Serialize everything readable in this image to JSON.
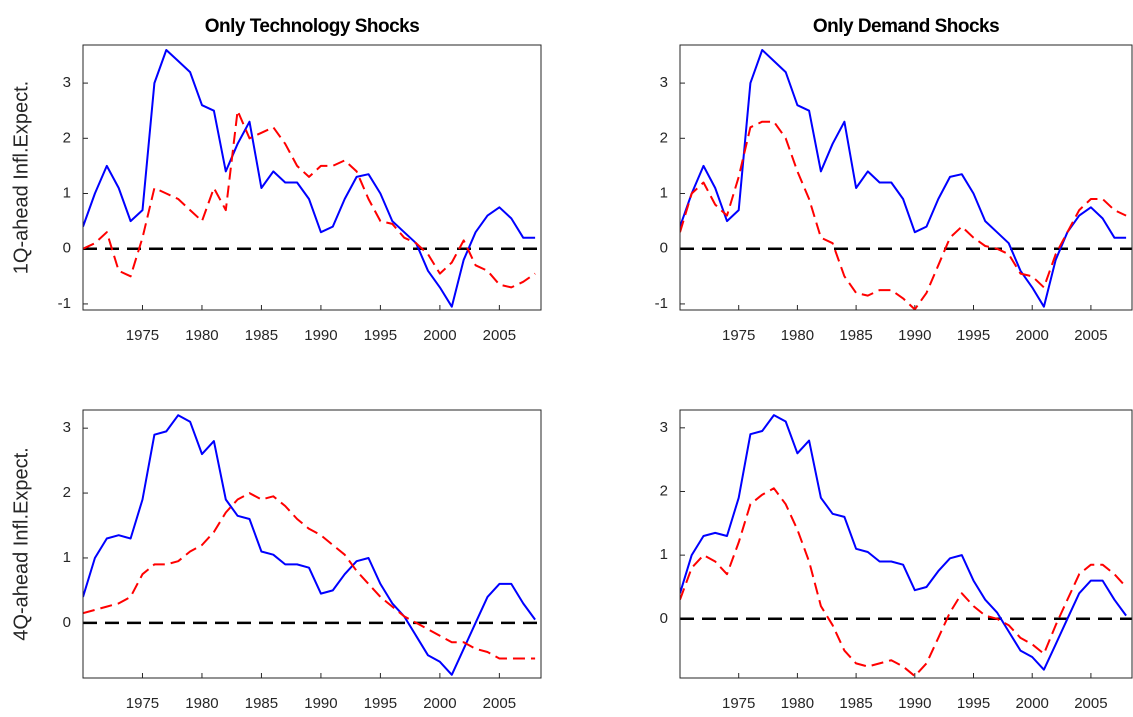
{
  "chart_data": [
    {
      "type": "line",
      "title": "Only Technology Shocks",
      "ylabel": "1Q-ahead Infl.Expect.",
      "x": [
        1970,
        1971,
        1972,
        1973,
        1974,
        1975,
        1976,
        1977,
        1978,
        1979,
        1980,
        1981,
        1982,
        1983,
        1984,
        1985,
        1986,
        1987,
        1988,
        1989,
        1990,
        1991,
        1992,
        1993,
        1994,
        1995,
        1996,
        1997,
        1998,
        1999,
        2000,
        2001,
        2002,
        2003,
        2004,
        2005,
        2006,
        2007,
        2008
      ],
      "xlim": [
        1970,
        2008.5
      ],
      "xticks": [
        1975,
        1980,
        1985,
        1990,
        1995,
        2000,
        2005
      ],
      "ylim": [
        -1.11,
        3.69
      ],
      "yticks": [
        -1,
        0,
        1,
        2,
        3
      ],
      "hline": 0,
      "series": [
        {
          "color": "#0000ff",
          "dash": false,
          "values": [
            0.4,
            1.0,
            1.5,
            1.1,
            0.5,
            0.7,
            3.0,
            3.6,
            3.4,
            3.2,
            2.6,
            2.5,
            1.4,
            1.9,
            2.3,
            1.1,
            1.4,
            1.2,
            1.2,
            0.9,
            0.3,
            0.4,
            0.9,
            1.3,
            1.35,
            1.0,
            0.5,
            0.3,
            0.1,
            -0.4,
            -0.7,
            -1.05,
            -0.2,
            0.3,
            0.6,
            0.75,
            0.55,
            0.2,
            0.2
          ]
        },
        {
          "color": "#ff0000",
          "dash": true,
          "values": [
            0.0,
            0.1,
            0.3,
            -0.4,
            -0.5,
            0.2,
            1.1,
            1.0,
            0.9,
            0.7,
            0.5,
            1.1,
            0.7,
            2.5,
            2.0,
            2.1,
            2.2,
            1.9,
            1.5,
            1.3,
            1.5,
            1.5,
            1.6,
            1.4,
            0.9,
            0.5,
            0.45,
            0.2,
            0.1,
            -0.1,
            -0.45,
            -0.25,
            0.15,
            -0.3,
            -0.4,
            -0.65,
            -0.7,
            -0.6,
            -0.45
          ]
        }
      ]
    },
    {
      "type": "line",
      "title": "Only Demand Shocks",
      "x": [
        1970,
        1971,
        1972,
        1973,
        1974,
        1975,
        1976,
        1977,
        1978,
        1979,
        1980,
        1981,
        1982,
        1983,
        1984,
        1985,
        1986,
        1987,
        1988,
        1989,
        1990,
        1991,
        1992,
        1993,
        1994,
        1995,
        1996,
        1997,
        1998,
        1999,
        2000,
        2001,
        2002,
        2003,
        2004,
        2005,
        2006,
        2007,
        2008
      ],
      "xlim": [
        1970,
        2008.5
      ],
      "xticks": [
        1975,
        1980,
        1985,
        1990,
        1995,
        2000,
        2005
      ],
      "ylim": [
        -1.11,
        3.69
      ],
      "yticks": [
        -1,
        0,
        1,
        2,
        3
      ],
      "hline": 0,
      "series": [
        {
          "color": "#0000ff",
          "dash": false,
          "values": [
            0.4,
            1.0,
            1.5,
            1.1,
            0.5,
            0.7,
            3.0,
            3.6,
            3.4,
            3.2,
            2.6,
            2.5,
            1.4,
            1.9,
            2.3,
            1.1,
            1.4,
            1.2,
            1.2,
            0.9,
            0.3,
            0.4,
            0.9,
            1.3,
            1.35,
            1.0,
            0.5,
            0.3,
            0.1,
            -0.4,
            -0.7,
            -1.05,
            -0.2,
            0.3,
            0.6,
            0.75,
            0.55,
            0.2,
            0.2
          ]
        },
        {
          "color": "#ff0000",
          "dash": true,
          "values": [
            0.3,
            1.0,
            1.2,
            0.8,
            0.6,
            1.3,
            2.2,
            2.3,
            2.3,
            2.0,
            1.4,
            0.9,
            0.2,
            0.1,
            -0.5,
            -0.8,
            -0.85,
            -0.75,
            -0.75,
            -0.9,
            -1.1,
            -0.8,
            -0.3,
            0.2,
            0.4,
            0.2,
            0.05,
            0.0,
            -0.1,
            -0.45,
            -0.5,
            -0.7,
            -0.1,
            0.3,
            0.7,
            0.9,
            0.9,
            0.7,
            0.6
          ]
        }
      ]
    },
    {
      "type": "line",
      "ylabel": "4Q-ahead Infl.Expect.",
      "x": [
        1970,
        1971,
        1972,
        1973,
        1974,
        1975,
        1976,
        1977,
        1978,
        1979,
        1980,
        1981,
        1982,
        1983,
        1984,
        1985,
        1986,
        1987,
        1988,
        1989,
        1990,
        1991,
        1992,
        1993,
        1994,
        1995,
        1996,
        1997,
        1998,
        1999,
        2000,
        2001,
        2002,
        2003,
        2004,
        2005,
        2006,
        2007,
        2008
      ],
      "xlim": [
        1970,
        2008.5
      ],
      "xticks": [
        1975,
        1980,
        1985,
        1990,
        1995,
        2000,
        2005
      ],
      "ylim": [
        -0.85,
        3.28
      ],
      "yticks": [
        0,
        1,
        2,
        3
      ],
      "hline": 0,
      "series": [
        {
          "color": "#0000ff",
          "dash": false,
          "values": [
            0.4,
            1.0,
            1.3,
            1.35,
            1.3,
            1.9,
            2.9,
            2.95,
            3.2,
            3.1,
            2.6,
            2.8,
            1.9,
            1.65,
            1.6,
            1.1,
            1.05,
            0.9,
            0.9,
            0.85,
            0.45,
            0.5,
            0.75,
            0.95,
            1.0,
            0.6,
            0.3,
            0.1,
            -0.2,
            -0.5,
            -0.6,
            -0.8,
            -0.4,
            0.0,
            0.4,
            0.6,
            0.6,
            0.3,
            0.05
          ]
        },
        {
          "color": "#ff0000",
          "dash": true,
          "values": [
            0.15,
            0.2,
            0.25,
            0.3,
            0.4,
            0.75,
            0.9,
            0.9,
            0.95,
            1.1,
            1.2,
            1.4,
            1.7,
            1.9,
            2.0,
            1.9,
            1.95,
            1.8,
            1.6,
            1.45,
            1.35,
            1.2,
            1.05,
            0.8,
            0.6,
            0.4,
            0.25,
            0.1,
            0.0,
            -0.1,
            -0.2,
            -0.3,
            -0.3,
            -0.4,
            -0.45,
            -0.55,
            -0.55,
            -0.55,
            -0.55
          ]
        }
      ]
    },
    {
      "type": "line",
      "x": [
        1970,
        1971,
        1972,
        1973,
        1974,
        1975,
        1976,
        1977,
        1978,
        1979,
        1980,
        1981,
        1982,
        1983,
        1984,
        1985,
        1986,
        1987,
        1988,
        1989,
        1990,
        1991,
        1992,
        1993,
        1994,
        1995,
        1996,
        1997,
        1998,
        1999,
        2000,
        2001,
        2002,
        2003,
        2004,
        2005,
        2006,
        2007,
        2008
      ],
      "xlim": [
        1970,
        2008.5
      ],
      "xticks": [
        1975,
        1980,
        1985,
        1990,
        1995,
        2000,
        2005
      ],
      "ylim": [
        -0.93,
        3.28
      ],
      "yticks": [
        0,
        1,
        2,
        3
      ],
      "hline": 0,
      "series": [
        {
          "color": "#0000ff",
          "dash": false,
          "values": [
            0.4,
            1.0,
            1.3,
            1.35,
            1.3,
            1.9,
            2.9,
            2.95,
            3.2,
            3.1,
            2.6,
            2.8,
            1.9,
            1.65,
            1.6,
            1.1,
            1.05,
            0.9,
            0.9,
            0.85,
            0.45,
            0.5,
            0.75,
            0.95,
            1.0,
            0.6,
            0.3,
            0.1,
            -0.2,
            -0.5,
            -0.6,
            -0.8,
            -0.4,
            0.0,
            0.4,
            0.6,
            0.6,
            0.3,
            0.05
          ]
        },
        {
          "color": "#ff0000",
          "dash": true,
          "values": [
            0.3,
            0.8,
            1.0,
            0.9,
            0.7,
            1.2,
            1.8,
            1.95,
            2.05,
            1.8,
            1.4,
            0.9,
            0.2,
            -0.1,
            -0.5,
            -0.7,
            -0.75,
            -0.7,
            -0.65,
            -0.75,
            -0.9,
            -0.7,
            -0.3,
            0.1,
            0.4,
            0.2,
            0.05,
            0.0,
            -0.1,
            -0.3,
            -0.4,
            -0.55,
            -0.1,
            0.3,
            0.7,
            0.85,
            0.85,
            0.7,
            0.5
          ]
        }
      ]
    }
  ]
}
